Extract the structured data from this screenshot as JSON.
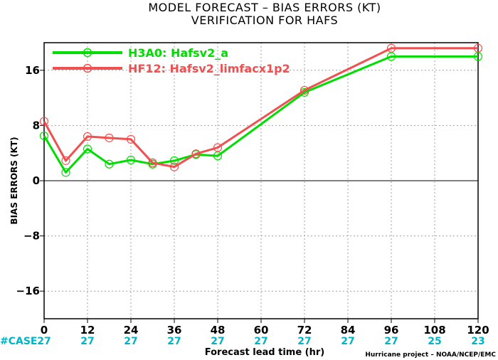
{
  "chart_data": {
    "type": "line",
    "title": "MODEL FORECAST – BIAS ERRORS (KT)",
    "subtitle": "VERIFICATION FOR HAFS",
    "xlabel": "Forecast lead time (hr)",
    "ylabel": "BIAS ERRORS (KT)",
    "xlim": [
      0,
      120
    ],
    "ylim": [
      -20,
      20
    ],
    "x_ticks": [
      "0",
      "12",
      "24",
      "36",
      "48",
      "60",
      "72",
      "84",
      "96",
      "108",
      "120"
    ],
    "y_ticks": [
      "16",
      "8",
      "0",
      "−8",
      "−16"
    ],
    "grid": true,
    "legend_position": "top-left",
    "series": [
      {
        "name": "H3A0: Hafsv2_a",
        "color": "#00dd00",
        "x": [
          0,
          6,
          12,
          18,
          24,
          30,
          36,
          42,
          48,
          72,
          96,
          120
        ],
        "y": [
          6.5,
          1.2,
          4.6,
          2.4,
          3.0,
          2.4,
          2.9,
          3.8,
          3.6,
          12.8,
          18.0,
          18.0
        ]
      },
      {
        "name": "HF12: Hafsv2_limfacx1p2",
        "color": "#f05050",
        "x": [
          0,
          6,
          12,
          18,
          24,
          30,
          36,
          42,
          48,
          72,
          96,
          120
        ],
        "y": [
          8.6,
          2.9,
          6.4,
          6.2,
          6.0,
          2.6,
          2.0,
          3.9,
          4.8,
          13.1,
          19.2,
          19.2
        ]
      }
    ],
    "case_label": "#CASE",
    "case_counts": [
      {
        "x": 0,
        "n": "27"
      },
      {
        "x": 12,
        "n": "27"
      },
      {
        "x": 24,
        "n": "27"
      },
      {
        "x": 36,
        "n": "27"
      },
      {
        "x": 48,
        "n": "27"
      },
      {
        "x": 60,
        "n": "27"
      },
      {
        "x": 72,
        "n": "27"
      },
      {
        "x": 84,
        "n": "27"
      },
      {
        "x": 96,
        "n": "27"
      },
      {
        "x": 108,
        "n": "25"
      },
      {
        "x": 120,
        "n": "23"
      }
    ],
    "case_color": "#00b4c8",
    "credit": "Hurricane project – NOAA/NCEP/EMC"
  }
}
